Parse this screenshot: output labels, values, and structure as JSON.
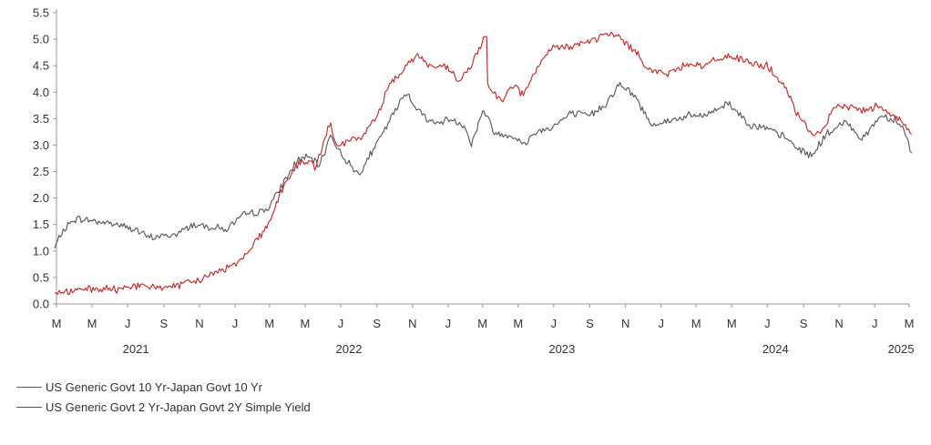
{
  "chart_data": {
    "type": "line",
    "title": "",
    "xlabel": "",
    "ylabel": "",
    "ylim": [
      0,
      5.5
    ],
    "yticks": [
      "0.0",
      "0.5",
      "1.0",
      "1.5",
      "2.0",
      "2.5",
      "3.0",
      "3.5",
      "4.0",
      "4.5",
      "5.0",
      "5.5"
    ],
    "xlim": [
      "2021-03-01",
      "2025-03-01"
    ],
    "month_ticks": [
      {
        "date": "2021-03-01",
        "label": "M"
      },
      {
        "date": "2021-05-01",
        "label": "M"
      },
      {
        "date": "2021-07-01",
        "label": "J"
      },
      {
        "date": "2021-09-01",
        "label": "S"
      },
      {
        "date": "2021-11-01",
        "label": "N"
      },
      {
        "date": "2022-01-01",
        "label": "J"
      },
      {
        "date": "2022-03-01",
        "label": "M"
      },
      {
        "date": "2022-05-01",
        "label": "M"
      },
      {
        "date": "2022-07-01",
        "label": "J"
      },
      {
        "date": "2022-09-01",
        "label": "S"
      },
      {
        "date": "2022-11-01",
        "label": "N"
      },
      {
        "date": "2023-01-01",
        "label": "J"
      },
      {
        "date": "2023-03-01",
        "label": "M"
      },
      {
        "date": "2023-05-01",
        "label": "M"
      },
      {
        "date": "2023-07-01",
        "label": "J"
      },
      {
        "date": "2023-09-01",
        "label": "S"
      },
      {
        "date": "2023-11-01",
        "label": "N"
      },
      {
        "date": "2024-01-01",
        "label": "J"
      },
      {
        "date": "2024-03-01",
        "label": "M"
      },
      {
        "date": "2024-05-01",
        "label": "M"
      },
      {
        "date": "2024-07-01",
        "label": "J"
      },
      {
        "date": "2024-09-01",
        "label": "S"
      },
      {
        "date": "2024-11-01",
        "label": "N"
      },
      {
        "date": "2025-01-01",
        "label": "J"
      },
      {
        "date": "2025-03-01",
        "label": "M"
      }
    ],
    "year_labels": [
      {
        "date": "2021-07-15",
        "label": "2021"
      },
      {
        "date": "2022-07-15",
        "label": "2022"
      },
      {
        "date": "2023-07-15",
        "label": "2023"
      },
      {
        "date": "2024-07-15",
        "label": "2024"
      },
      {
        "date": "2025-02-15",
        "label": "2025"
      }
    ],
    "grid": false,
    "legend_position": "bottom-left",
    "series": [
      {
        "name": "US Generic Govt 10 Yr-Japan Govt 10 Yr",
        "color": "#555555",
        "points": [
          [
            "2021-02-26",
            1.05
          ],
          [
            "2021-03-10",
            1.35
          ],
          [
            "2021-03-31",
            1.6
          ],
          [
            "2021-04-15",
            1.6
          ],
          [
            "2021-05-15",
            1.55
          ],
          [
            "2021-06-15",
            1.5
          ],
          [
            "2021-07-15",
            1.4
          ],
          [
            "2021-08-05",
            1.25
          ],
          [
            "2021-08-25",
            1.28
          ],
          [
            "2021-09-20",
            1.3
          ],
          [
            "2021-10-20",
            1.5
          ],
          [
            "2021-11-30",
            1.45
          ],
          [
            "2021-12-15",
            1.4
          ],
          [
            "2022-01-20",
            1.7
          ],
          [
            "2022-02-20",
            1.75
          ],
          [
            "2022-03-10",
            2.0
          ],
          [
            "2022-03-31",
            2.4
          ],
          [
            "2022-04-20",
            2.75
          ],
          [
            "2022-05-10",
            2.75
          ],
          [
            "2022-05-25",
            2.6
          ],
          [
            "2022-06-14",
            3.2
          ],
          [
            "2022-06-30",
            2.85
          ],
          [
            "2022-07-31",
            2.45
          ],
          [
            "2022-08-31",
            3.0
          ],
          [
            "2022-09-30",
            3.6
          ],
          [
            "2022-10-21",
            4.0
          ],
          [
            "2022-11-15",
            3.6
          ],
          [
            "2022-12-10",
            3.4
          ],
          [
            "2023-01-05",
            3.5
          ],
          [
            "2023-01-31",
            3.35
          ],
          [
            "2023-02-10",
            3.0
          ],
          [
            "2023-03-01",
            3.65
          ],
          [
            "2023-03-08",
            3.55
          ],
          [
            "2023-03-24",
            3.2
          ],
          [
            "2023-04-20",
            3.2
          ],
          [
            "2023-05-10",
            3.0
          ],
          [
            "2023-05-31",
            3.25
          ],
          [
            "2023-06-30",
            3.35
          ],
          [
            "2023-07-31",
            3.6
          ],
          [
            "2023-08-31",
            3.55
          ],
          [
            "2023-09-30",
            3.8
          ],
          [
            "2023-10-20",
            4.15
          ],
          [
            "2023-11-15",
            3.95
          ],
          [
            "2023-12-15",
            3.4
          ],
          [
            "2024-01-15",
            3.45
          ],
          [
            "2024-02-15",
            3.55
          ],
          [
            "2024-03-15",
            3.55
          ],
          [
            "2024-04-25",
            3.8
          ],
          [
            "2024-05-31",
            3.4
          ],
          [
            "2024-06-30",
            3.3
          ],
          [
            "2024-07-31",
            3.15
          ],
          [
            "2024-08-20",
            2.95
          ],
          [
            "2024-09-15",
            2.8
          ],
          [
            "2024-10-10",
            3.2
          ],
          [
            "2024-11-15",
            3.45
          ],
          [
            "2024-12-10",
            3.1
          ],
          [
            "2025-01-10",
            3.55
          ],
          [
            "2025-02-05",
            3.5
          ],
          [
            "2025-02-20",
            3.3
          ],
          [
            "2025-03-05",
            2.85
          ]
        ]
      },
      {
        "name": "US Generic Govt 2 Yr-Japan Govt 2Y Simple Yield",
        "color": "#cc1f1f",
        "points": [
          [
            "2021-02-26",
            0.2
          ],
          [
            "2021-03-31",
            0.25
          ],
          [
            "2021-04-30",
            0.27
          ],
          [
            "2021-05-31",
            0.28
          ],
          [
            "2021-06-15",
            0.26
          ],
          [
            "2021-07-01",
            0.35
          ],
          [
            "2021-07-31",
            0.32
          ],
          [
            "2021-08-31",
            0.32
          ],
          [
            "2021-09-30",
            0.35
          ],
          [
            "2021-10-31",
            0.45
          ],
          [
            "2021-11-30",
            0.6
          ],
          [
            "2021-12-31",
            0.75
          ],
          [
            "2022-01-20",
            0.95
          ],
          [
            "2022-02-20",
            1.4
          ],
          [
            "2022-03-01",
            1.55
          ],
          [
            "2022-03-20",
            2.1
          ],
          [
            "2022-04-15",
            2.6
          ],
          [
            "2022-04-30",
            2.7
          ],
          [
            "2022-05-20",
            2.6
          ],
          [
            "2022-06-14",
            3.45
          ],
          [
            "2022-06-24",
            2.95
          ],
          [
            "2022-07-10",
            3.05
          ],
          [
            "2022-08-05",
            3.15
          ],
          [
            "2022-08-31",
            3.5
          ],
          [
            "2022-09-20",
            4.1
          ],
          [
            "2022-10-20",
            4.5
          ],
          [
            "2022-11-10",
            4.7
          ],
          [
            "2022-11-30",
            4.5
          ],
          [
            "2022-12-31",
            4.45
          ],
          [
            "2023-01-20",
            4.2
          ],
          [
            "2023-02-10",
            4.5
          ],
          [
            "2023-03-08",
            5.1
          ],
          [
            "2023-03-10",
            4.1
          ],
          [
            "2023-03-15",
            4.05
          ],
          [
            "2023-04-05",
            3.85
          ],
          [
            "2023-04-20",
            4.15
          ],
          [
            "2023-05-10",
            3.95
          ],
          [
            "2023-05-31",
            4.4
          ],
          [
            "2023-06-30",
            4.85
          ],
          [
            "2023-07-20",
            4.85
          ],
          [
            "2023-08-31",
            4.95
          ],
          [
            "2023-09-30",
            5.1
          ],
          [
            "2023-10-20",
            5.05
          ],
          [
            "2023-11-15",
            4.8
          ],
          [
            "2023-12-15",
            4.4
          ],
          [
            "2024-01-15",
            4.35
          ],
          [
            "2024-02-15",
            4.55
          ],
          [
            "2024-03-15",
            4.5
          ],
          [
            "2024-04-25",
            4.7
          ],
          [
            "2024-05-31",
            4.55
          ],
          [
            "2024-06-30",
            4.5
          ],
          [
            "2024-07-31",
            4.1
          ],
          [
            "2024-08-20",
            3.6
          ],
          [
            "2024-09-15",
            3.2
          ],
          [
            "2024-10-05",
            3.3
          ],
          [
            "2024-10-25",
            3.7
          ],
          [
            "2024-11-15",
            3.75
          ],
          [
            "2024-12-10",
            3.65
          ],
          [
            "2025-01-10",
            3.75
          ],
          [
            "2025-02-05",
            3.55
          ],
          [
            "2025-02-20",
            3.4
          ],
          [
            "2025-03-05",
            3.2
          ]
        ]
      }
    ]
  },
  "legend": {
    "item_1": "US Generic Govt 10 Yr-Japan Govt 10 Yr",
    "item_2": "US Generic Govt 2 Yr-Japan Govt 2Y Simple Yield"
  }
}
